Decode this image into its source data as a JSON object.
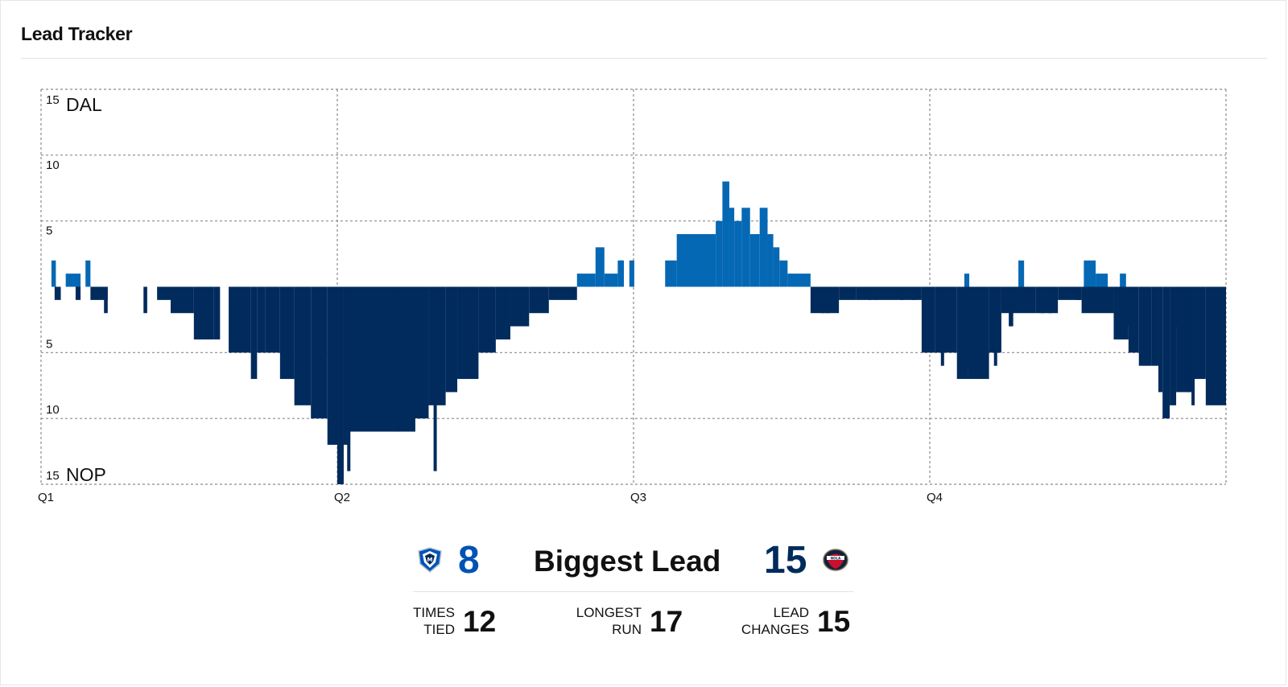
{
  "header": {
    "title": "Lead Tracker"
  },
  "colors": {
    "dal": "#0568b4",
    "nop": "#002b5c",
    "grid": "#8a8a8a",
    "dal_num": "#0052b4",
    "nop_num": "#002b5c"
  },
  "chart_data": {
    "type": "bar",
    "title": "",
    "xlabel": "",
    "ylabel": "",
    "top_team_label": "DAL",
    "bottom_team_label": "NOP",
    "y_ticks": [
      "15",
      "10",
      "5",
      "",
      "5",
      "10",
      "15"
    ],
    "x_tick_labels": [
      "Q1",
      "Q2",
      "Q3",
      "Q4"
    ],
    "ylim": [
      -15,
      15
    ],
    "grid": true,
    "sign_convention": "positive = DAL leads, negative = NOP leads",
    "x_unit": "minutes elapsed (48-minute game, 12 per quarter)",
    "series": [
      {
        "name": "DAL",
        "x_start": [
          0.42,
          1.0,
          1.8,
          21.71,
          22.46,
          22.82,
          23.36,
          23.83,
          25.28,
          25.75,
          26.69,
          27.33,
          27.6,
          27.88,
          28.08,
          28.38,
          28.72,
          29.11,
          29.43,
          29.66,
          29.91,
          30.24,
          37.4,
          39.59,
          42.24,
          42.72,
          43.7
        ],
        "x_end": [
          0.6,
          1.6,
          2.0,
          22.46,
          22.82,
          23.36,
          23.61,
          24.0,
          25.75,
          26.69,
          27.33,
          27.6,
          27.88,
          28.08,
          28.38,
          28.72,
          29.11,
          29.43,
          29.66,
          29.91,
          30.24,
          31.17,
          37.6,
          39.82,
          42.72,
          43.21,
          43.95
        ],
        "values": [
          2,
          1,
          2,
          1,
          3,
          1,
          2,
          2,
          2,
          4,
          4,
          5,
          8,
          6,
          5,
          6,
          4,
          6,
          4,
          3,
          2,
          1,
          1,
          2,
          2,
          1,
          1
        ]
      },
      {
        "name": "NOP",
        "x_start": [
          0.55,
          1.4,
          2.0,
          2.55,
          4.15,
          4.7,
          5.25,
          6.19,
          7.0,
          7.6,
          8.5,
          8.75,
          9.07,
          9.68,
          10.26,
          10.93,
          11.6,
          12.0,
          12.26,
          12.5,
          15.12,
          15.7,
          16.39,
          16.86,
          17.72,
          18.42,
          19.01,
          19.77,
          20.57,
          31.17,
          32.32,
          33.02,
          33.82,
          34.82,
          35.67,
          36.2,
          37.1,
          37.55,
          38.4,
          38.9,
          40.3,
          41.19,
          42.15,
          43.45,
          44.05,
          44.47,
          44.98,
          45.26,
          45.43,
          45.72,
          45.98,
          46.7,
          47.18
        ],
        "x_end": [
          0.8,
          1.6,
          2.7,
          2.7,
          4.3,
          5.25,
          6.19,
          7.0,
          7.25,
          8.5,
          8.75,
          9.07,
          9.68,
          10.26,
          10.93,
          11.6,
          12.0,
          12.26,
          12.5,
          15.12,
          15.7,
          16.39,
          16.86,
          17.72,
          18.42,
          19.01,
          19.77,
          20.57,
          21.71,
          32.32,
          33.02,
          33.82,
          34.82,
          35.67,
          36.2,
          37.1,
          37.55,
          38.4,
          38.9,
          40.3,
          41.19,
          42.15,
          43.45,
          44.05,
          44.47,
          44.98,
          45.26,
          45.43,
          45.72,
          45.98,
          46.7,
          47.18,
          48.0
        ],
        "values": [
          -1,
          -1,
          -1,
          -2,
          -2,
          -1,
          -2,
          -4,
          -4,
          -5,
          -7,
          -5,
          -5,
          -7,
          -9,
          -10,
          -12,
          -15,
          -12,
          -11,
          -10,
          -9,
          -8,
          -7,
          -5,
          -4,
          -3,
          -2,
          -1,
          -2,
          -1,
          -1,
          -1,
          -1,
          -5,
          -5,
          -7,
          -7,
          -5,
          -2,
          -2,
          -1,
          -2,
          -4,
          -5,
          -6,
          -6,
          -8,
          -10,
          -9,
          -8,
          -7,
          -9
        ]
      },
      {
        "name": "NOP spikes",
        "x": [
          12.1,
          12.4,
          14.37,
          15.03,
          15.9,
          31.6,
          31.8,
          33.5,
          33.75,
          34.8,
          35.3,
          36.45,
          37.5,
          38.6,
          39.2,
          39.25,
          39.7,
          40.1,
          40.5,
          40.8,
          41.9,
          42.0,
          44.0,
          45.9,
          46.4,
          46.6
        ],
        "values": [
          -15,
          -14,
          -11,
          -11,
          -14,
          -2,
          -2,
          -1,
          -1,
          -1,
          -1,
          -6,
          -6,
          -6,
          -3,
          -3,
          -1,
          -1,
          -2,
          -2,
          -1,
          -1,
          -3,
          -3,
          -8,
          -9
        ]
      },
      {
        "name": "DAL spikes",
        "x": [
          23.45,
          23.9
        ],
        "values": [
          2,
          2
        ]
      }
    ]
  },
  "summary": {
    "dal_biggest_lead": "8",
    "biggest_lead_label": "Biggest Lead",
    "nop_biggest_lead": "15",
    "times_tied_label": "TIMES\nTIED",
    "times_tied_value": "12",
    "longest_run_label": "LONGEST\nRUN",
    "longest_run_value": "17",
    "lead_changes_label": "LEAD\nCHANGES",
    "lead_changes_value": "15"
  },
  "icons": {
    "dal_logo": "mavericks-logo-icon",
    "nop_logo": "pelicans-logo-icon"
  }
}
